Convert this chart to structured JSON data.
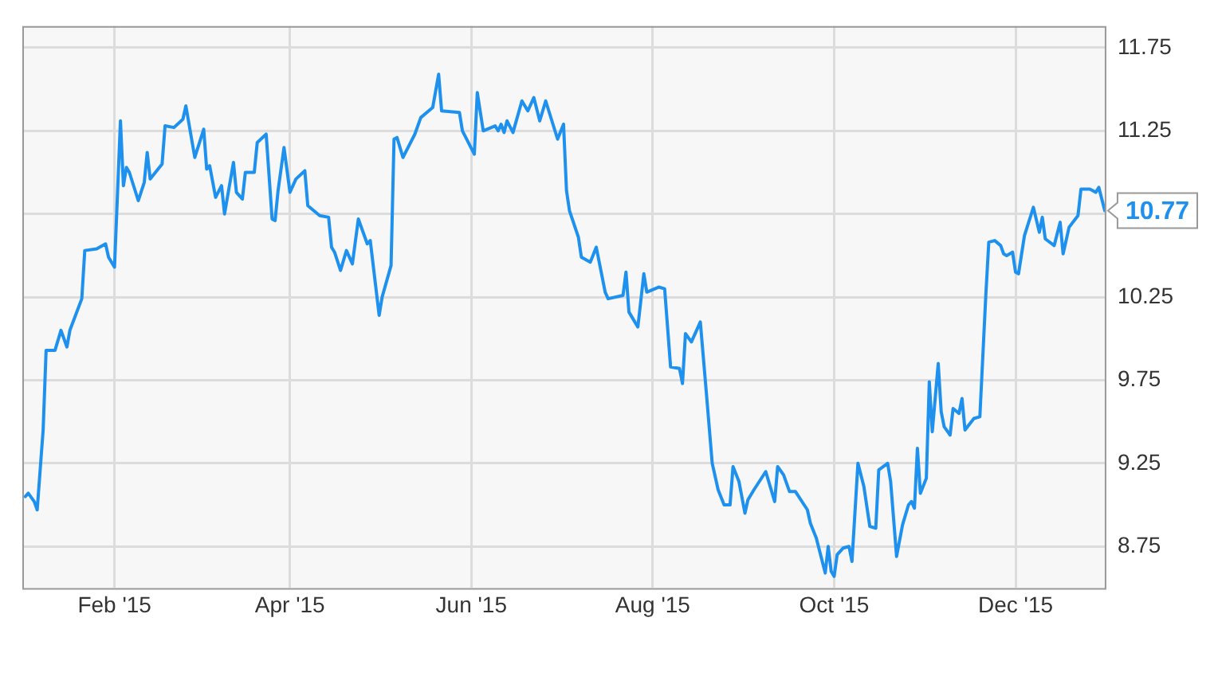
{
  "chart_data": {
    "type": "line",
    "x": [
      "2015-01-02",
      "2015-01-03",
      "2015-01-05",
      "2015-01-06",
      "2015-01-08",
      "2015-01-09",
      "2015-01-12",
      "2015-01-14",
      "2015-01-16",
      "2015-01-17",
      "2015-01-21",
      "2015-01-22",
      "2015-01-26",
      "2015-01-29",
      "2015-01-30",
      "2015-02-01",
      "2015-02-03",
      "2015-02-04",
      "2015-02-05",
      "2015-02-06",
      "2015-02-09",
      "2015-02-11",
      "2015-02-12",
      "2015-02-13",
      "2015-02-17",
      "2015-02-18",
      "2015-02-21",
      "2015-02-24",
      "2015-02-25",
      "2015-02-28",
      "2015-03-03",
      "2015-03-04",
      "2015-03-05",
      "2015-03-07",
      "2015-03-09",
      "2015-03-10",
      "2015-03-13",
      "2015-03-14",
      "2015-03-16",
      "2015-03-17",
      "2015-03-20",
      "2015-03-21",
      "2015-03-24",
      "2015-03-26",
      "2015-03-27",
      "2015-03-28",
      "2015-03-30",
      "2015-04-01",
      "2015-04-03",
      "2015-04-06",
      "2015-04-07",
      "2015-04-09",
      "2015-04-11",
      "2015-04-14",
      "2015-04-15",
      "2015-04-16",
      "2015-04-18",
      "2015-04-20",
      "2015-04-22",
      "2015-04-24",
      "2015-04-27",
      "2015-04-28",
      "2015-05-01",
      "2015-05-02",
      "2015-05-05",
      "2015-05-06",
      "2015-05-07",
      "2015-05-09",
      "2015-05-13",
      "2015-05-15",
      "2015-05-19",
      "2015-05-21",
      "2015-05-22",
      "2015-05-28",
      "2015-05-29",
      "2015-06-02",
      "2015-06-03",
      "2015-06-05",
      "2015-06-09",
      "2015-06-10",
      "2015-06-11",
      "2015-06-12",
      "2015-06-13",
      "2015-06-15",
      "2015-06-18",
      "2015-06-20",
      "2015-06-22",
      "2015-06-24",
      "2015-06-26",
      "2015-06-30",
      "2015-07-02",
      "2015-07-03",
      "2015-07-04",
      "2015-07-07",
      "2015-07-08",
      "2015-07-11",
      "2015-07-13",
      "2015-07-16",
      "2015-07-17",
      "2015-07-22",
      "2015-07-23",
      "2015-07-24",
      "2015-07-27",
      "2015-07-29",
      "2015-07-30",
      "2015-08-03",
      "2015-08-05",
      "2015-08-07",
      "2015-08-10",
      "2015-08-11",
      "2015-08-12",
      "2015-08-14",
      "2015-08-17",
      "2015-08-19",
      "2015-08-21",
      "2015-08-23",
      "2015-08-25",
      "2015-08-27",
      "2015-08-28",
      "2015-08-30",
      "2015-09-01",
      "2015-09-02",
      "2015-09-04",
      "2015-09-08",
      "2015-09-11",
      "2015-09-12",
      "2015-09-14",
      "2015-09-16",
      "2015-09-18",
      "2015-09-22",
      "2015-09-23",
      "2015-09-25",
      "2015-09-28",
      "2015-09-29",
      "2015-09-30",
      "2015-10-01",
      "2015-10-02",
      "2015-10-04",
      "2015-10-06",
      "2015-10-07",
      "2015-10-09",
      "2015-10-11",
      "2015-10-13",
      "2015-10-15",
      "2015-10-16",
      "2015-10-19",
      "2015-10-20",
      "2015-10-22",
      "2015-10-24",
      "2015-10-26",
      "2015-10-27",
      "2015-10-28",
      "2015-10-29",
      "2015-10-30",
      "2015-11-01",
      "2015-11-02",
      "2015-11-03",
      "2015-11-05",
      "2015-11-06",
      "2015-11-07",
      "2015-11-09",
      "2015-11-10",
      "2015-11-12",
      "2015-11-13",
      "2015-11-14",
      "2015-11-17",
      "2015-11-19",
      "2015-11-21",
      "2015-11-22",
      "2015-11-24",
      "2015-11-26",
      "2015-11-27",
      "2015-11-28",
      "2015-11-30",
      "2015-12-01",
      "2015-12-02",
      "2015-12-04",
      "2015-12-07",
      "2015-12-09",
      "2015-12-10",
      "2015-12-11",
      "2015-12-14",
      "2015-12-16",
      "2015-12-17",
      "2015-12-19",
      "2015-12-22",
      "2015-12-23",
      "2015-12-26",
      "2015-12-28",
      "2015-12-29",
      "2015-12-31"
    ],
    "series": [
      {
        "color": "#1e90ee",
        "values": [
          9.05,
          9.07,
          9.02,
          8.97,
          9.45,
          9.93,
          9.93,
          10.05,
          9.95,
          10.05,
          10.24,
          10.53,
          10.54,
          10.57,
          10.49,
          10.43,
          11.31,
          10.92,
          11.03,
          11.0,
          10.83,
          10.94,
          11.12,
          10.96,
          11.05,
          11.28,
          11.27,
          11.32,
          11.4,
          11.09,
          11.26,
          11.02,
          11.04,
          10.85,
          10.92,
          10.75,
          11.06,
          10.88,
          10.84,
          11.0,
          11.0,
          11.18,
          11.23,
          10.72,
          10.71,
          10.89,
          11.15,
          10.88,
          10.96,
          11.01,
          10.8,
          10.77,
          10.74,
          10.73,
          10.55,
          10.52,
          10.41,
          10.53,
          10.45,
          10.72,
          10.57,
          10.59,
          10.14,
          10.25,
          10.44,
          11.2,
          11.21,
          11.09,
          11.23,
          11.33,
          11.39,
          11.59,
          11.37,
          11.36,
          11.25,
          11.11,
          11.48,
          11.25,
          11.28,
          11.25,
          11.29,
          11.24,
          11.31,
          11.24,
          11.43,
          11.37,
          11.45,
          11.31,
          11.43,
          11.2,
          11.29,
          10.89,
          10.77,
          10.61,
          10.49,
          10.46,
          10.55,
          10.28,
          10.24,
          10.26,
          10.4,
          10.16,
          10.07,
          10.39,
          10.28,
          10.31,
          10.3,
          9.83,
          9.82,
          9.73,
          10.03,
          9.98,
          10.1,
          9.68,
          9.25,
          9.09,
          9.0,
          9.0,
          9.23,
          9.14,
          8.95,
          9.03,
          9.09,
          9.2,
          9.02,
          9.23,
          9.18,
          9.08,
          9.08,
          8.97,
          8.89,
          8.8,
          8.59,
          8.75,
          8.6,
          8.57,
          8.7,
          8.74,
          8.75,
          8.66,
          9.25,
          9.11,
          8.87,
          8.86,
          9.21,
          9.25,
          9.14,
          8.69,
          8.88,
          9.0,
          9.02,
          8.98,
          9.34,
          9.07,
          9.16,
          9.74,
          9.44,
          9.85,
          9.56,
          9.47,
          9.42,
          9.58,
          9.55,
          9.64,
          9.45,
          9.52,
          9.53,
          10.26,
          10.58,
          10.59,
          10.56,
          10.51,
          10.5,
          10.52,
          10.4,
          10.39,
          10.62,
          10.79,
          10.64,
          10.73,
          10.6,
          10.56,
          10.7,
          10.51,
          10.67,
          10.74,
          10.9,
          10.9,
          10.88,
          10.91,
          10.77
        ]
      }
    ],
    "xlim": [
      "2015-01-01",
      "2015-12-31"
    ],
    "xticks": [
      {
        "value": "2015-02-01",
        "label": "Feb '15"
      },
      {
        "value": "2015-04-01",
        "label": "Apr '15"
      },
      {
        "value": "2015-06-01",
        "label": "Jun '15"
      },
      {
        "value": "2015-08-01",
        "label": "Aug '15"
      },
      {
        "value": "2015-10-01",
        "label": "Oct '15"
      },
      {
        "value": "2015-12-01",
        "label": "Dec '15"
      }
    ],
    "ylim": [
      8.5,
      11.88
    ],
    "yticks": [
      8.75,
      9.25,
      9.75,
      10.25,
      {
        "value": 10.75,
        "label": null
      },
      11.25,
      11.75
    ],
    "annotations": [
      {
        "text": "10.77",
        "x": "2015-12-31",
        "y": 10.77
      }
    ],
    "grid": true,
    "legend": false,
    "marker": "none",
    "line_style": "solid"
  }
}
